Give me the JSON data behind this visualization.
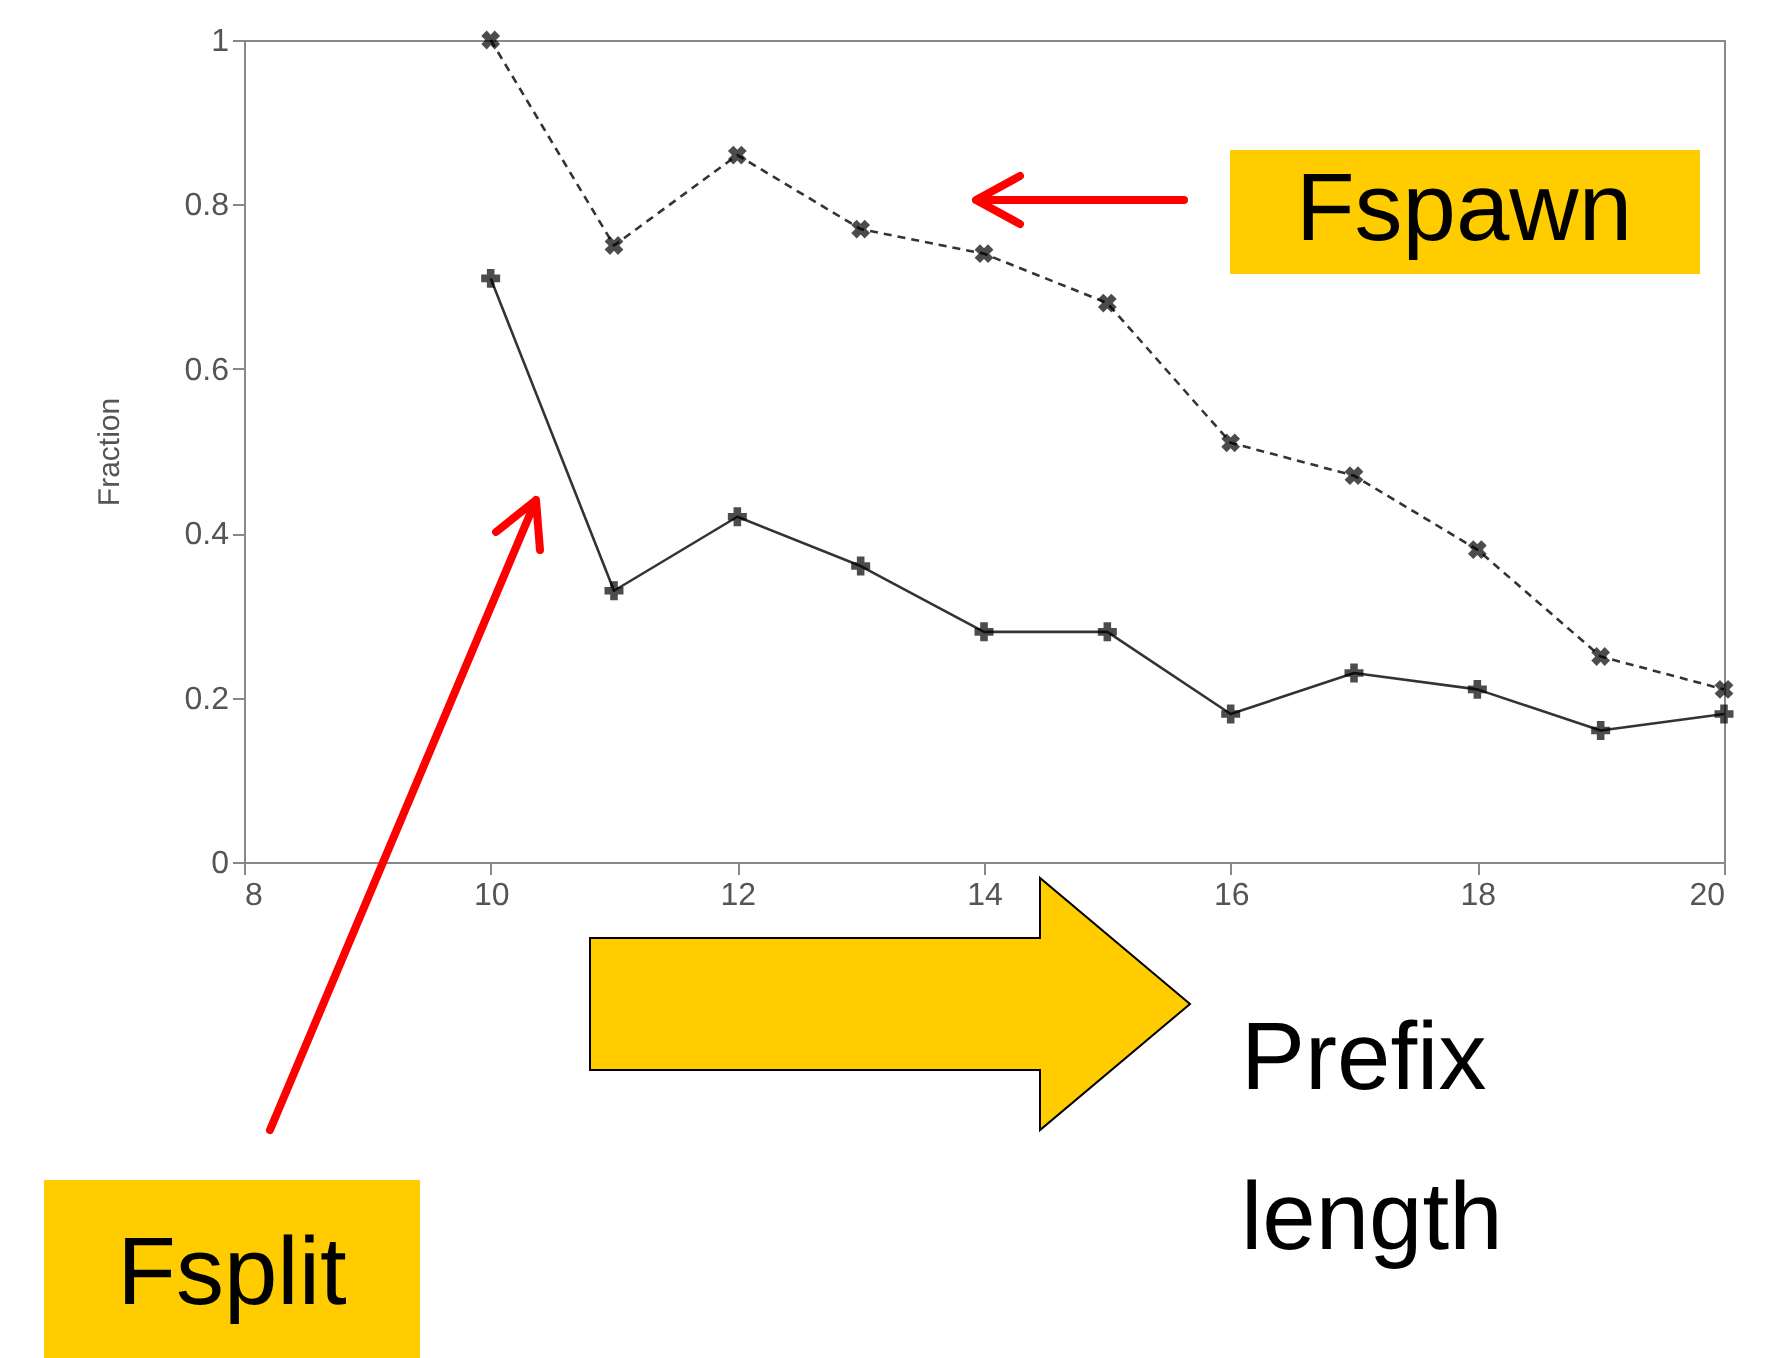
{
  "chart_data": {
    "type": "line",
    "xlabel": "Prefix length",
    "ylabel": "Fraction",
    "x": [
      10,
      11,
      12,
      13,
      14,
      15,
      16,
      17,
      18,
      19,
      20
    ],
    "series": [
      {
        "name": "Fspawn",
        "color": "#000000",
        "line_style": "dashed",
        "marker": "cross",
        "values": [
          1.0,
          0.75,
          0.86,
          0.77,
          0.74,
          0.68,
          0.51,
          0.47,
          0.38,
          0.25,
          0.21
        ]
      },
      {
        "name": "Fsplit",
        "color": "#000000",
        "line_style": "solid",
        "marker": "cross",
        "values": [
          0.71,
          0.33,
          0.42,
          0.36,
          0.28,
          0.28,
          0.18,
          0.23,
          0.21,
          0.16,
          0.18
        ]
      }
    ],
    "xlim": [
      8,
      20
    ],
    "ylim": [
      0,
      1
    ],
    "xticks": [
      8,
      10,
      12,
      14,
      16,
      18,
      20
    ],
    "yticks": [
      0,
      0.2,
      0.4,
      0.6,
      0.8,
      1
    ],
    "grid": false,
    "legend": false
  }
}
